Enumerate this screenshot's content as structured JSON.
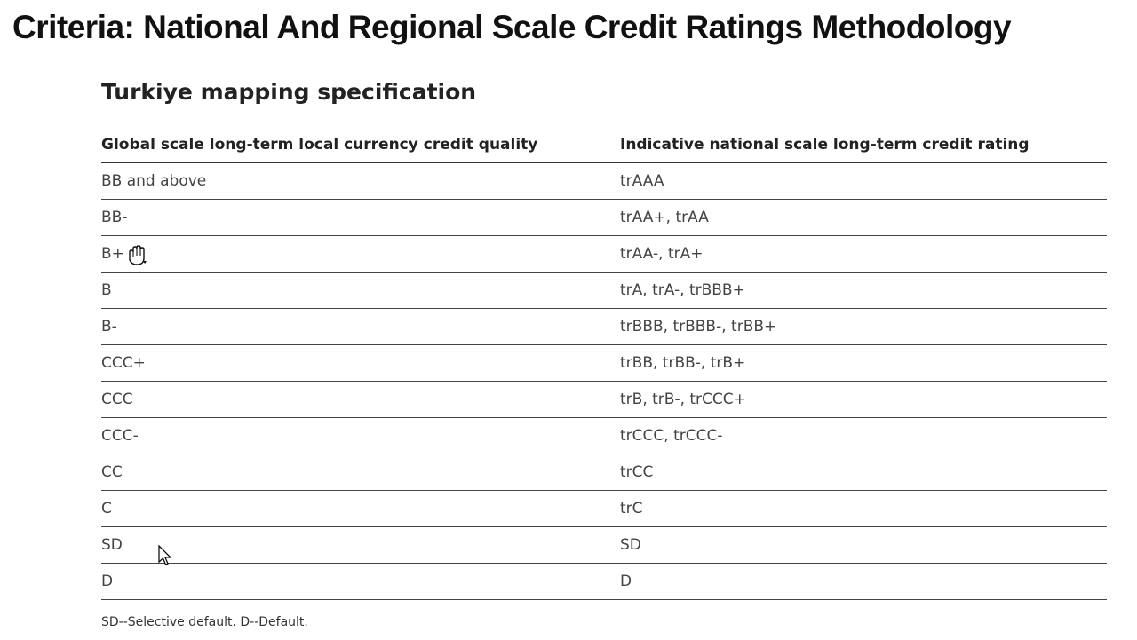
{
  "document": {
    "title": "Criteria: National And Regional Scale Credit Ratings Methodology",
    "section_title": "Turkiye mapping specification",
    "table": {
      "headers": [
        "Global scale long-term local currency credit quality",
        "Indicative national scale long-term credit rating"
      ],
      "rows": [
        [
          "BB and above",
          "trAAA"
        ],
        [
          "BB-",
          "trAA+, trAA"
        ],
        [
          "B+",
          "trAA-, trA+"
        ],
        [
          "B",
          "trA, trA-, trBBB+"
        ],
        [
          "B-",
          "trBBB, trBBB-, trBB+"
        ],
        [
          "CCC+",
          "trBB, trBB-, trB+"
        ],
        [
          "CCC",
          "trB, trB-, trCCC+"
        ],
        [
          "CCC-",
          "trCCC, trCCC-"
        ],
        [
          "CC",
          "trCC"
        ],
        [
          "C",
          "trC"
        ],
        [
          "SD",
          "SD"
        ],
        [
          "D",
          "D"
        ]
      ]
    },
    "footnote": "SD--Selective default. D--Default."
  },
  "cursors": {
    "hand": "hand-grab-cursor-icon",
    "arrow": "arrow-pointer-cursor-icon"
  }
}
